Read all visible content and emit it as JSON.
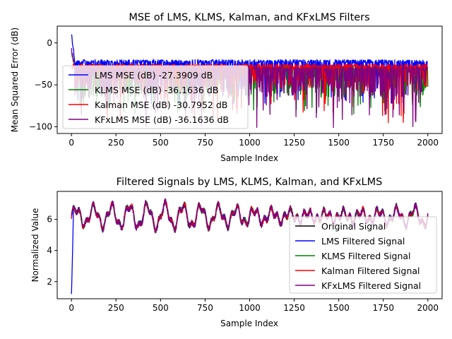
{
  "chart_data": [
    {
      "type": "line",
      "title": "MSE of LMS, KLMS, Kalman, and KFxLMS Filters",
      "xlabel": "Sample Index",
      "ylabel": "Mean Squared Error (dB)",
      "xlim": [
        -80,
        2080
      ],
      "ylim": [
        -108,
        20
      ],
      "xticks": [
        0,
        250,
        500,
        750,
        1000,
        1250,
        1500,
        1750,
        2000
      ],
      "yticks": [
        0,
        -50,
        -100
      ],
      "legend": "lower-left",
      "n_samples": 2000,
      "series": [
        {
          "name": "LMS MSE (dB) -27.3909 dB",
          "color": "#0000ff",
          "start": 14,
          "floor": -20,
          "depth": 12,
          "min": -75
        },
        {
          "name": "KLMS MSE (dB) -36.1636 dB",
          "color": "#008000",
          "start": -8,
          "floor": -28,
          "depth": 18,
          "min": -85
        },
        {
          "name": "Kalman MSE (dB) -30.7952 dB",
          "color": "#ff0000",
          "start": -25,
          "floor": -25,
          "depth": 14,
          "min": -96
        },
        {
          "name": "KFxLMS MSE (dB) -36.1636 dB",
          "color": "#800080",
          "start": -5,
          "floor": -28,
          "depth": 18,
          "min": -102
        }
      ]
    },
    {
      "type": "line",
      "title": "Filtered Signals by LMS, KLMS, Kalman, and KFxLMS",
      "xlabel": "Sample Index",
      "ylabel": "Normalized Value",
      "xlim": [
        -80,
        2080
      ],
      "ylim": [
        0.9,
        7.8
      ],
      "xticks": [
        0,
        250,
        500,
        750,
        1000,
        1250,
        1500,
        1750,
        2000
      ],
      "yticks": [
        2,
        4,
        6
      ],
      "legend": "lower-right",
      "n_samples": 2000,
      "baseline": 6.2,
      "period": 100,
      "lms_start": 1.2,
      "series": [
        {
          "name": "Original Signal",
          "color": "#000000"
        },
        {
          "name": "LMS Filtered Signal",
          "color": "#0000ff"
        },
        {
          "name": "KLMS Filtered Signal",
          "color": "#008000"
        },
        {
          "name": "Kalman Filtered Signal",
          "color": "#ff0000"
        },
        {
          "name": "KFxLMS Filtered Signal",
          "color": "#800080"
        }
      ]
    }
  ]
}
